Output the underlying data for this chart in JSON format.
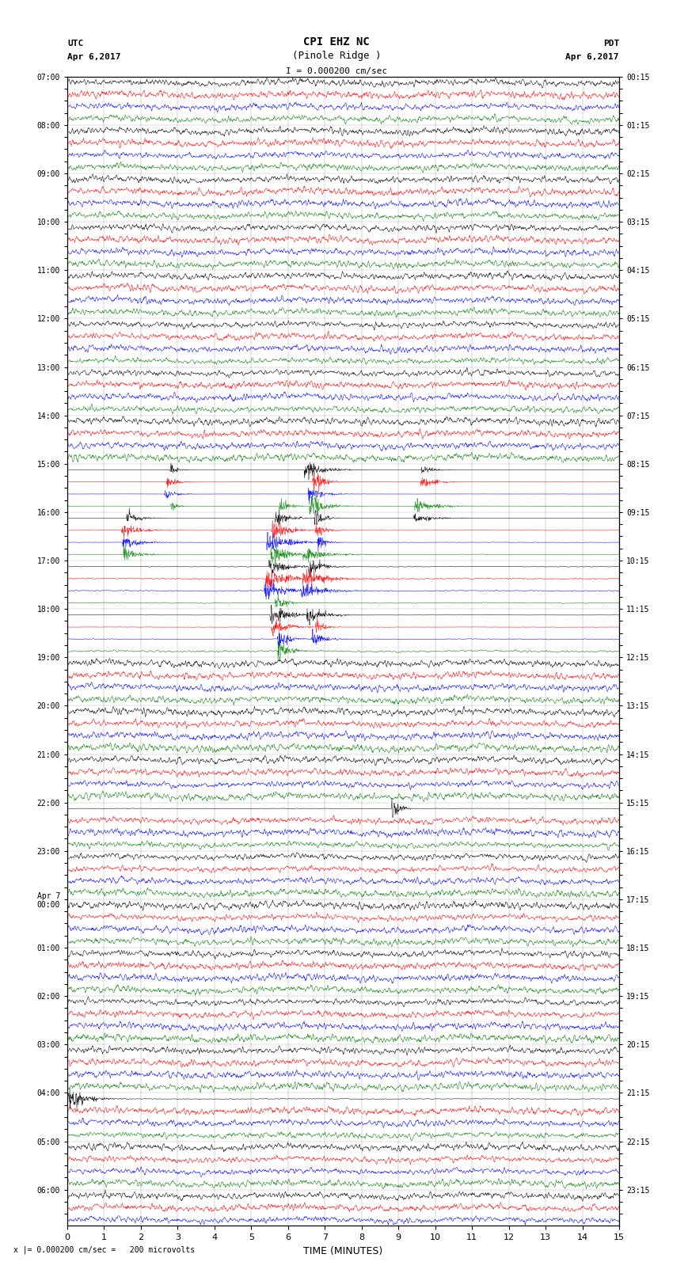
{
  "title_line1": "CPI EHZ NC",
  "title_line2": "(Pinole Ridge )",
  "scale_text": "I = 0.000200 cm/sec",
  "left_label": "UTC",
  "left_date": "Apr 6,2017",
  "right_label": "PDT",
  "right_date": "Apr 6,2017",
  "bottom_note": "x |= 0.000200 cm/sec =   200 microvolts",
  "xlabel": "TIME (MINUTES)",
  "time_min": 0,
  "time_max": 15,
  "xticks": [
    0,
    1,
    2,
    3,
    4,
    5,
    6,
    7,
    8,
    9,
    10,
    11,
    12,
    13,
    14,
    15
  ],
  "utc_labels": [
    "07:00",
    "",
    "",
    "",
    "08:00",
    "",
    "",
    "",
    "09:00",
    "",
    "",
    "",
    "10:00",
    "",
    "",
    "",
    "11:00",
    "",
    "",
    "",
    "12:00",
    "",
    "",
    "",
    "13:00",
    "",
    "",
    "",
    "14:00",
    "",
    "",
    "",
    "15:00",
    "",
    "",
    "",
    "16:00",
    "",
    "",
    "",
    "17:00",
    "",
    "",
    "",
    "18:00",
    "",
    "",
    "",
    "19:00",
    "",
    "",
    "",
    "20:00",
    "",
    "",
    "",
    "21:00",
    "",
    "",
    "",
    "22:00",
    "",
    "",
    "",
    "23:00",
    "",
    "",
    "",
    "Apr 7\n00:00",
    "",
    "",
    "",
    "01:00",
    "",
    "",
    "",
    "02:00",
    "",
    "",
    "",
    "03:00",
    "",
    "",
    "",
    "04:00",
    "",
    "",
    "",
    "05:00",
    "",
    "",
    "",
    "06:00",
    "",
    ""
  ],
  "pdt_labels": [
    "00:15",
    "",
    "",
    "",
    "01:15",
    "",
    "",
    "",
    "02:15",
    "",
    "",
    "",
    "03:15",
    "",
    "",
    "",
    "04:15",
    "",
    "",
    "",
    "05:15",
    "",
    "",
    "",
    "06:15",
    "",
    "",
    "",
    "07:15",
    "",
    "",
    "",
    "08:15",
    "",
    "",
    "",
    "09:15",
    "",
    "",
    "",
    "10:15",
    "",
    "",
    "",
    "11:15",
    "",
    "",
    "",
    "12:15",
    "",
    "",
    "",
    "13:15",
    "",
    "",
    "",
    "14:15",
    "",
    "",
    "",
    "15:15",
    "",
    "",
    "",
    "16:15",
    "",
    "",
    "",
    "17:15",
    "",
    "",
    "",
    "18:15",
    "",
    "",
    "",
    "19:15",
    "",
    "",
    "",
    "20:15",
    "",
    "",
    "",
    "21:15",
    "",
    "",
    "",
    "22:15",
    "",
    "",
    "",
    "23:15",
    "",
    ""
  ],
  "colors": [
    "black",
    "red",
    "blue",
    "green"
  ],
  "background_color": "white",
  "n_rows": 95,
  "figwidth": 8.5,
  "figheight": 16.13,
  "dpi": 100
}
